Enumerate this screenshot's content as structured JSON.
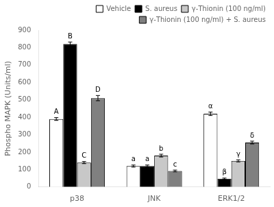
{
  "chart_data": {
    "type": "bar",
    "ylabel": "Phospho MAPK (Units/ml)",
    "categories": [
      "p38",
      "JNK",
      "ERK1/2"
    ],
    "series": [
      {
        "name": "Vehicle",
        "color": "white",
        "values": [
          390,
          120,
          420
        ],
        "errors": [
          8,
          6,
          10
        ],
        "annotations": [
          "A",
          "a",
          "α"
        ]
      },
      {
        "name": "S. aureus",
        "color": "black",
        "values": [
          820,
          120,
          47
        ],
        "errors": [
          12,
          6,
          4
        ],
        "annotations": [
          "B",
          "a",
          "β"
        ]
      },
      {
        "name": "γ-Thionin (100 ng/ml)",
        "color": "#c8c8c8",
        "values": [
          140,
          180,
          150
        ],
        "errors": [
          6,
          8,
          6
        ],
        "annotations": [
          "C",
          "b",
          "γ"
        ]
      },
      {
        "name": "γ-Thionin (100 ng/ml) + S. aureus",
        "color": "#808080",
        "values": [
          510,
          92,
          255
        ],
        "errors": [
          15,
          5,
          8
        ],
        "annotations": [
          "D",
          "c",
          "δ"
        ]
      }
    ],
    "ylim": [
      0,
      900
    ],
    "yticks": [
      0,
      100,
      200,
      300,
      400,
      500,
      600,
      700,
      800,
      900
    ],
    "grid": false,
    "legend": "upper right"
  }
}
